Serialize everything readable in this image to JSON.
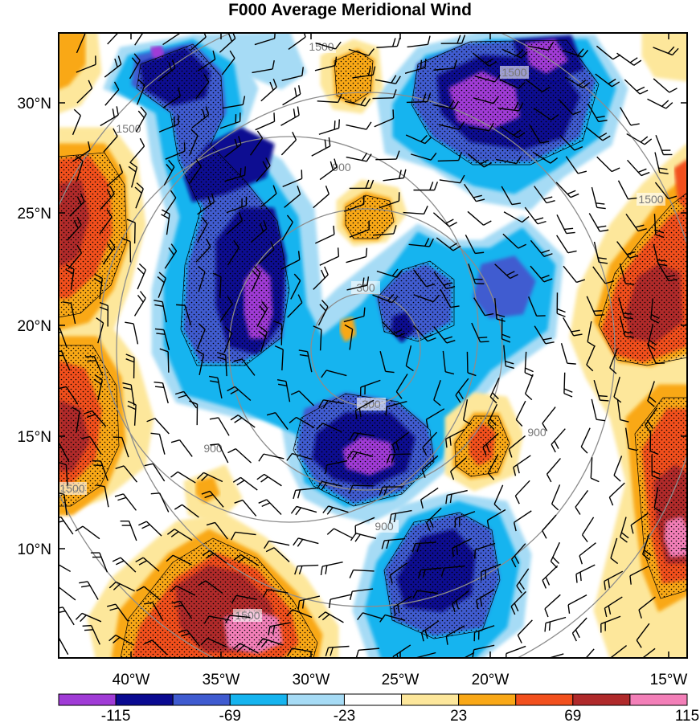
{
  "title": "F000 Average Meridional Wind",
  "map": {
    "lat_ticks": [
      "30°N",
      "25°N",
      "20°N",
      "15°N",
      "10°N"
    ],
    "lon_ticks": [
      "40°W",
      "35°W",
      "30°W",
      "25°W",
      "20°W",
      "15°W"
    ],
    "height_contour_labels": [
      "300",
      "300",
      "900",
      "900",
      "900",
      "900",
      "1500",
      "1500",
      "1500",
      "1500",
      "1500",
      "1500"
    ],
    "shading_colors": {
      "neg_extreme": "#a03bd6",
      "neg_strong": "#0a0a91",
      "neg_mid": "#3f5bd0",
      "neg_low": "#16b4ef",
      "neg_weak": "#a6dbf5",
      "neutral": "#ffffff",
      "pos_weak": "#fde79b",
      "pos_low": "#f9a817",
      "pos_mid": "#f2501e",
      "pos_strong": "#b02a2b",
      "pos_extreme": "#f37fb8"
    }
  },
  "colorbar": {
    "colors": [
      "#a03bd6",
      "#0a0a91",
      "#3f5bd0",
      "#16b4ef",
      "#a6dbf5",
      "#ffffff",
      "#fde79b",
      "#f9a817",
      "#f2501e",
      "#b02a2b",
      "#f37fb8"
    ],
    "labels": [
      "-115",
      "-69",
      "-23",
      "23",
      "69",
      "115"
    ]
  }
}
